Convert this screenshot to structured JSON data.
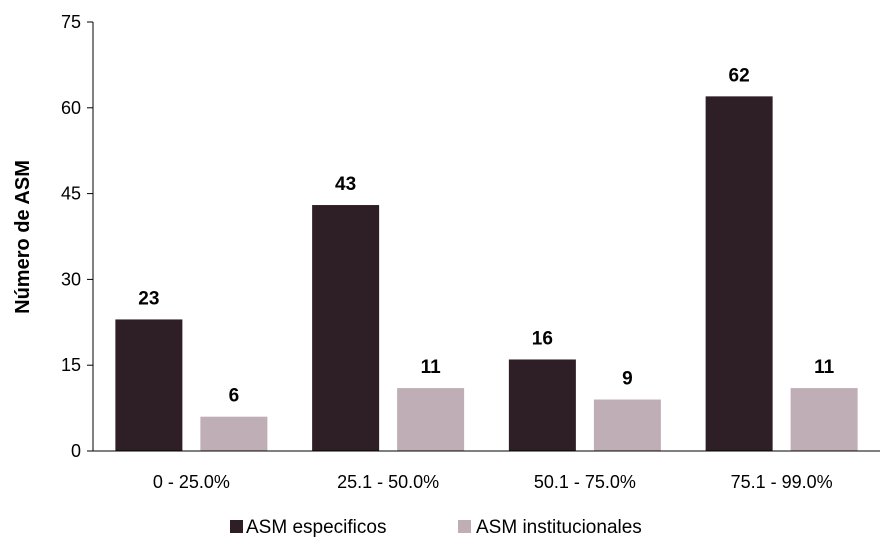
{
  "chart_data": {
    "type": "bar",
    "title": "",
    "xlabel": "",
    "ylabel": "Número de ASM",
    "ylim": [
      0,
      75
    ],
    "yticks": [
      0,
      15,
      30,
      45,
      60,
      75
    ],
    "categories": [
      "0 - 25.0%",
      "25.1 - 50.0%",
      "50.1 - 75.0%",
      "75.1 - 99.0%"
    ],
    "series": [
      {
        "name": "ASM especificos",
        "values": [
          23,
          43,
          16,
          62
        ],
        "color": "#2e1f26"
      },
      {
        "name": "ASM institucionales",
        "values": [
          6,
          11,
          9,
          11
        ],
        "color": "#bfaeb6"
      }
    ],
    "grid": false,
    "legend_position": "bottom-center"
  }
}
